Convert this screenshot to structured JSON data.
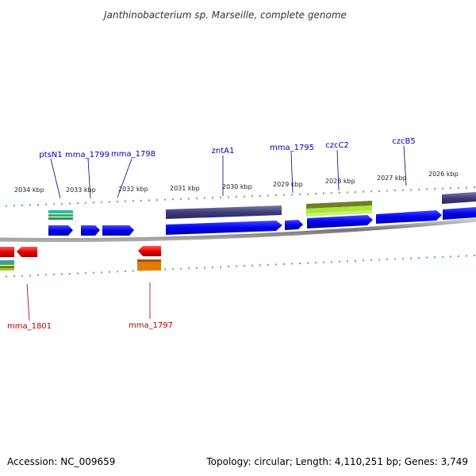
{
  "title": "Janthinobacterium sp. Marseille, complete genome",
  "footer": {
    "accession": "Accession: NC_009659",
    "summary": "Topology: circular; Length: 4,110,251 bp; Genes: 3,749"
  },
  "scale_labels": [
    "2034 kbp",
    "2033 kbp",
    "2032 kbp",
    "2031 kbp",
    "2030 kbp",
    "2029 kbp",
    "2028 kbp",
    "2027 kbp",
    "2026 kbp"
  ],
  "top_genes": [
    "ptsN1",
    "mma_1799",
    "mma_1798",
    "zntA1",
    "mma_1795",
    "czcC2",
    "czcB5"
  ],
  "bottom_genes": [
    "mma_1801",
    "mma_1797"
  ],
  "colors": {
    "forward_gene": "#0000f0",
    "reverse_gene": "#ee0000",
    "backbone": "#888888",
    "tick": "#2a8a2a",
    "top_label": "#0000b0",
    "bottom_label": "#b00000",
    "feature_purple": "#3d3d7a",
    "feature_olive": "#6e7f22",
    "feature_lime": "#a8e63a",
    "feature_teal": "#35b3b3",
    "feature_green": "#3bb04a",
    "feature_orange": "#e87a00"
  }
}
